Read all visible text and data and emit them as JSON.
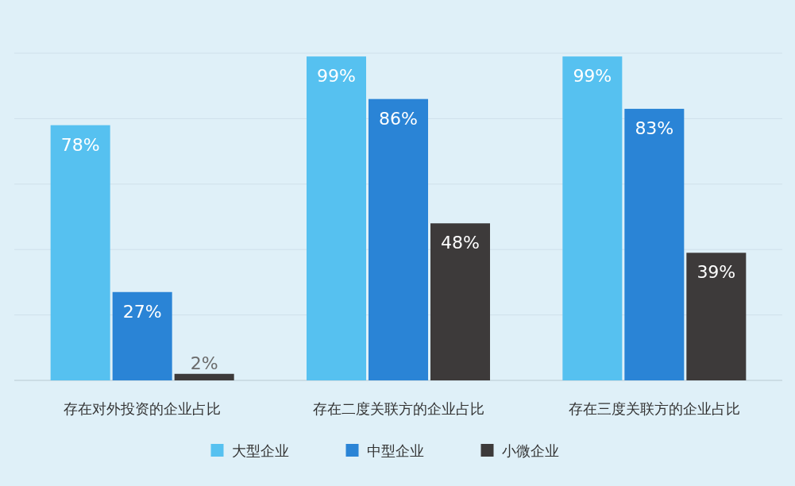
{
  "chart_data": {
    "type": "bar",
    "categories": [
      "存在对外投资的企业占比",
      "存在二度关联方的企业占比",
      "存在三度关联方的企业占比"
    ],
    "series": [
      {
        "name": "大型企业",
        "color": "#56c1f0",
        "values": [
          78,
          99,
          99
        ],
        "value_labels": [
          "78%",
          "99%",
          "99%"
        ]
      },
      {
        "name": "中型企业",
        "color": "#2a84d6",
        "values": [
          27,
          86,
          83
        ],
        "value_labels": [
          "27%",
          "86%",
          "83%"
        ]
      },
      {
        "name": "小微企业",
        "color": "#3d3a3a",
        "values": [
          2,
          48,
          39
        ],
        "value_labels": [
          "2%",
          "48%",
          "39%"
        ]
      }
    ],
    "ylim": [
      0,
      100
    ],
    "yticks": [
      {
        "value": 0,
        "label": null
      },
      {
        "value": 20,
        "label": null
      },
      {
        "value": 40,
        "label": null
      },
      {
        "value": 60,
        "label": null
      },
      {
        "value": 80,
        "label": null
      },
      {
        "value": 100,
        "label": null
      }
    ],
    "grid": "y",
    "legend": "bottom",
    "tick_labels": "x"
  }
}
